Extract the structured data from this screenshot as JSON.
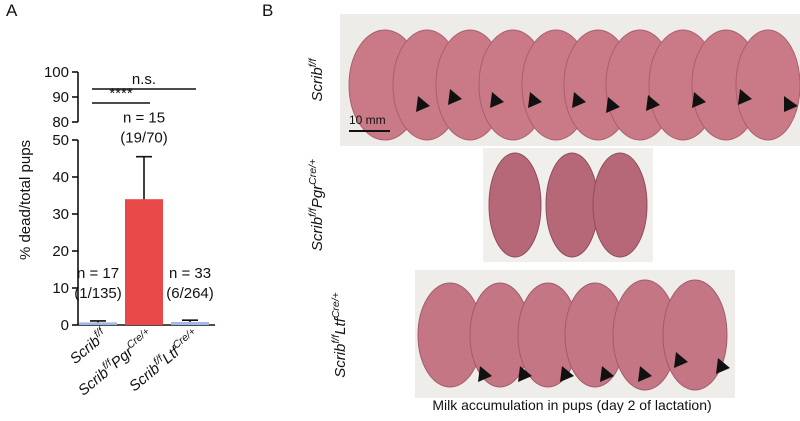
{
  "panel_labels": [
    "A",
    "B"
  ],
  "chart_data": {
    "type": "bar",
    "y_label": "% dead/total pups",
    "categories": [
      [
        {
          "text": "Scrib"
        },
        {
          "text": "f/f",
          "sup": true
        }
      ],
      [
        {
          "text": "Scrib"
        },
        {
          "text": "f/f",
          "sup": true
        },
        {
          "text": "Pgr"
        },
        {
          "text": "Cre/+",
          "sup": true
        }
      ],
      [
        {
          "text": "Scrib"
        },
        {
          "text": "f/f",
          "sup": true
        },
        {
          "text": "Ltf"
        },
        {
          "text": "Cre/+",
          "sup": true
        }
      ]
    ],
    "values": [
      0.7,
      34,
      0.8
    ],
    "errors": [
      0.4,
      11.5,
      0.5
    ],
    "colors": [
      "#9fb8e4",
      "#e84848",
      "#9fb8e4"
    ],
    "annotations": [
      [
        "n = 17",
        "(1/135)"
      ],
      [
        "n = 15",
        "(19/70)"
      ],
      [
        "n = 33",
        "(6/264)"
      ]
    ],
    "significance": [
      {
        "text": "****",
        "from": 0,
        "to": 1
      },
      {
        "text": "n.s.",
        "from": 0,
        "to": 2
      }
    ],
    "ylim": [
      0,
      100
    ],
    "axis_break": [
      50,
      80
    ],
    "yticks": [
      0,
      10,
      20,
      30,
      40,
      50,
      80,
      90,
      100
    ]
  },
  "panel_b": {
    "row_labels": [
      [
        {
          "text": "Scrib"
        },
        {
          "text": "f/f",
          "sup": true
        }
      ],
      [
        {
          "text": "Scrib"
        },
        {
          "text": "f/f",
          "sup": true
        },
        {
          "text": "Pgr"
        },
        {
          "text": "Cre/+",
          "sup": true
        }
      ],
      [
        {
          "text": "Scrib"
        },
        {
          "text": "f/f",
          "sup": true
        },
        {
          "text": "Ltf"
        },
        {
          "text": "Cre/+",
          "sup": true
        }
      ]
    ],
    "scale_bar": "10 mm",
    "caption": "Milk accumulation in pups (day 2 of lactation)"
  }
}
